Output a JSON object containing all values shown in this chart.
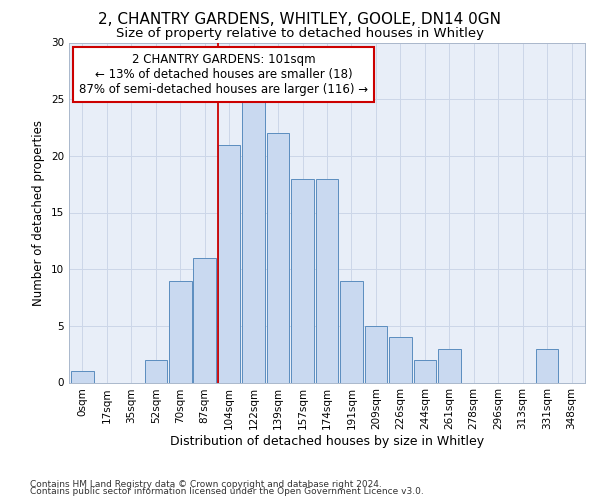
{
  "title1": "2, CHANTRY GARDENS, WHITLEY, GOOLE, DN14 0GN",
  "title2": "Size of property relative to detached houses in Whitley",
  "xlabel": "Distribution of detached houses by size in Whitley",
  "ylabel": "Number of detached properties",
  "footnote1": "Contains HM Land Registry data © Crown copyright and database right 2024.",
  "footnote2": "Contains public sector information licensed under the Open Government Licence v3.0.",
  "annotation_line1": "2 CHANTRY GARDENS: 101sqm",
  "annotation_line2": "← 13% of detached houses are smaller (18)",
  "annotation_line3": "87% of semi-detached houses are larger (116) →",
  "bar_labels": [
    "0sqm",
    "17sqm",
    "35sqm",
    "52sqm",
    "70sqm",
    "87sqm",
    "104sqm",
    "122sqm",
    "139sqm",
    "157sqm",
    "174sqm",
    "191sqm",
    "209sqm",
    "226sqm",
    "244sqm",
    "261sqm",
    "278sqm",
    "296sqm",
    "313sqm",
    "331sqm",
    "348sqm"
  ],
  "bar_values": [
    1,
    0,
    0,
    2,
    9,
    11,
    21,
    25,
    22,
    18,
    18,
    9,
    5,
    4,
    2,
    3,
    0,
    0,
    0,
    3,
    0
  ],
  "bar_color": "#c9d9f0",
  "bar_edge_color": "#5b8dbf",
  "red_line_index": 6,
  "ylim": [
    0,
    30
  ],
  "yticks": [
    0,
    5,
    10,
    15,
    20,
    25,
    30
  ],
  "grid_color": "#ccd6e8",
  "bg_color": "#e8eef8",
  "annotation_box_color": "#ffffff",
  "annotation_box_edge_color": "#cc0000",
  "red_line_color": "#cc0000",
  "title1_fontsize": 11,
  "title2_fontsize": 9.5,
  "xlabel_fontsize": 9,
  "ylabel_fontsize": 8.5,
  "tick_fontsize": 7.5,
  "annotation_fontsize": 8.5,
  "footnote_fontsize": 6.5
}
